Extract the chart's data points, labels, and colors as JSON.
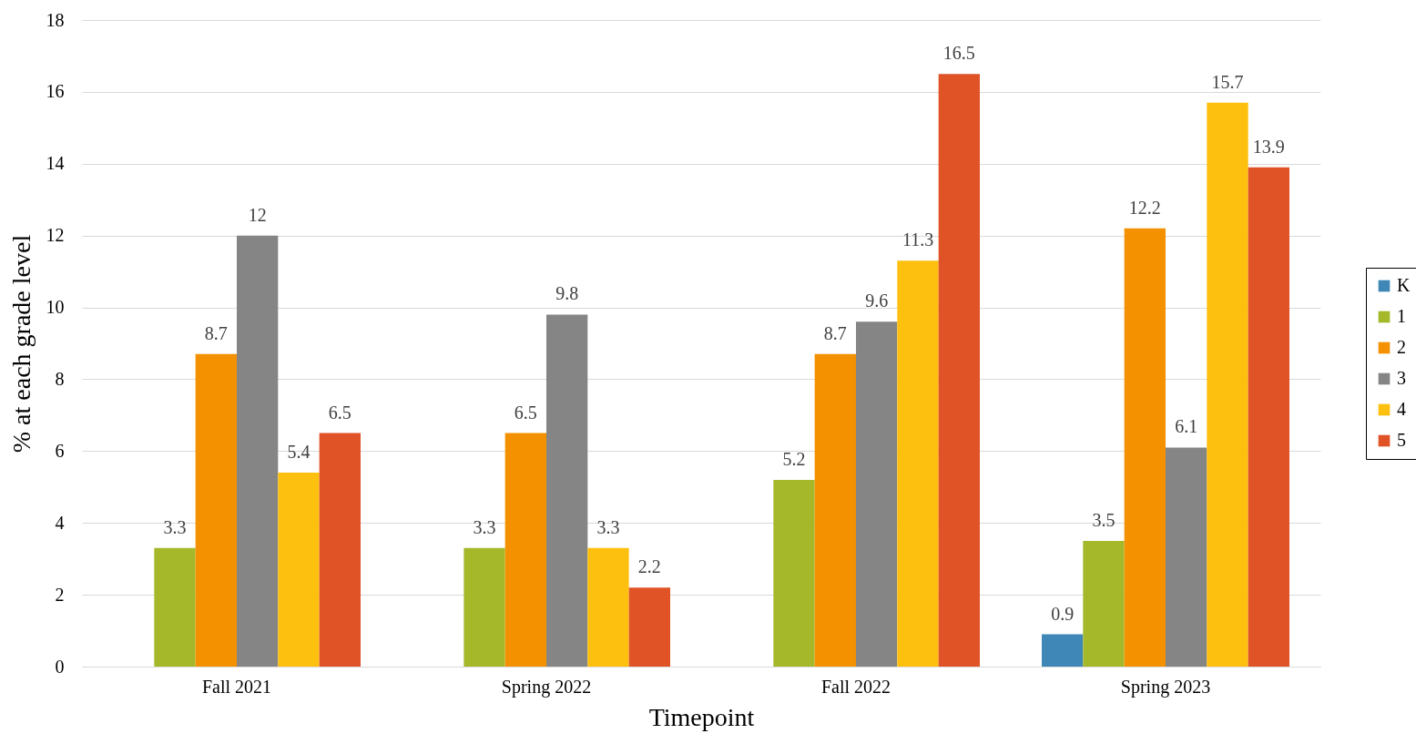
{
  "chart_data": {
    "type": "bar",
    "xlabel": "Timepoint",
    "ylabel": "% at each grade level",
    "categories": [
      "Fall 2021",
      "Spring 2022",
      "Fall 2022",
      "Spring 2023"
    ],
    "series": [
      {
        "name": "K",
        "color": "#3e87b6",
        "values": [
          null,
          null,
          null,
          0.9
        ]
      },
      {
        "name": "1",
        "color": "#a5b82a",
        "values": [
          3.3,
          3.3,
          5.2,
          3.5
        ]
      },
      {
        "name": "2",
        "color": "#f39100",
        "values": [
          8.7,
          6.5,
          8.7,
          12.2
        ]
      },
      {
        "name": "3",
        "color": "#858585",
        "values": [
          12,
          9.8,
          9.6,
          6.1
        ]
      },
      {
        "name": "4",
        "color": "#fdc00e",
        "values": [
          5.4,
          3.3,
          11.3,
          15.7
        ]
      },
      {
        "name": "5",
        "color": "#e05327",
        "values": [
          6.5,
          2.2,
          16.5,
          13.9
        ]
      }
    ],
    "ylim": [
      0,
      18
    ],
    "yticks": [
      0,
      2,
      4,
      6,
      8,
      10,
      12,
      14,
      16,
      18
    ],
    "grid": "y",
    "legend": "right",
    "data_labels": true
  }
}
